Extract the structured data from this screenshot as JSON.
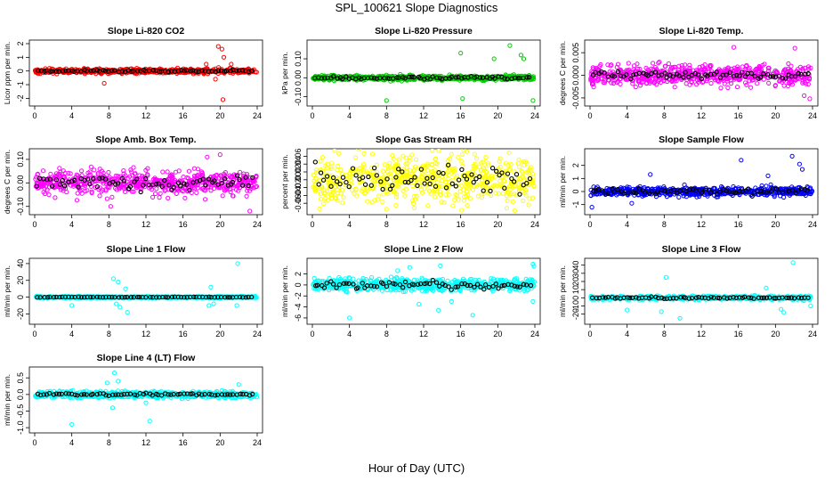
{
  "figure_title": "SPL_100621  Slope Diagnostics",
  "xlabel": "Hour of Day (UTC)",
  "chart_data": [
    {
      "type": "scatter",
      "title": "Slope Li-820 CO2",
      "ylabel": "Licor ppm per min.",
      "xlim": [
        0,
        24
      ],
      "ylim": [
        -2.3,
        2.0
      ],
      "xticks": [
        0,
        4,
        8,
        12,
        16,
        20,
        24
      ],
      "yticks": [
        -2,
        -1,
        0,
        1,
        2
      ],
      "ytick_labels": [
        "-2",
        "-1",
        "0",
        "1",
        "2"
      ],
      "color": "#ff0000",
      "spread": 0.35,
      "black_spread": 0.15,
      "outliers": [
        [
          19.8,
          1.8
        ],
        [
          20.2,
          1.6
        ],
        [
          20.4,
          1.0
        ],
        [
          21.2,
          0.5
        ],
        [
          20.3,
          -2.1
        ],
        [
          7.5,
          -0.9
        ],
        [
          19.5,
          -0.6
        ],
        [
          18.5,
          0.5
        ]
      ]
    },
    {
      "type": "scatter",
      "title": "Slope Li-820 Pressure",
      "ylabel": "kPa per min.",
      "xlim": [
        0,
        24
      ],
      "ylim": [
        -0.13,
        0.18
      ],
      "xticks": [
        0,
        4,
        8,
        12,
        16,
        20,
        24
      ],
      "yticks": [
        -0.1,
        0.0,
        0.1
      ],
      "ytick_labels": [
        "-0.10",
        "0.00",
        "0.10"
      ],
      "color": "#00cc00",
      "spread": 0.025,
      "black_spread": 0.015,
      "outliers": [
        [
          21.3,
          0.17
        ],
        [
          22.5,
          0.12
        ],
        [
          23.8,
          -0.12
        ],
        [
          8.0,
          -0.12
        ],
        [
          16.2,
          -0.11
        ],
        [
          16.0,
          0.13
        ],
        [
          19.6,
          0.1
        ],
        [
          22.8,
          0.1
        ]
      ]
    },
    {
      "type": "scatter",
      "title": "Slope Li-820 Temp.",
      "ylabel": "degrees C per min.",
      "xlim": [
        0,
        24
      ],
      "ylim": [
        -0.006,
        0.007
      ],
      "xticks": [
        0,
        4,
        8,
        12,
        16,
        20,
        24
      ],
      "yticks": [
        -0.005,
        0.0,
        0.005
      ],
      "ytick_labels": [
        "-0.005",
        "0.000",
        "0.005"
      ],
      "color": "#ff00ff",
      "spread": 0.0045,
      "black_spread": 0.0015,
      "outliers": [
        [
          23.7,
          -0.0052
        ],
        [
          15.5,
          0.0062
        ],
        [
          22.1,
          0.006
        ],
        [
          23.1,
          -0.0045
        ]
      ]
    },
    {
      "type": "scatter",
      "title": "Slope Amb. Box Temp.",
      "ylabel": "degrees C per min.",
      "xlim": [
        0,
        24
      ],
      "ylim": [
        -0.12,
        0.13
      ],
      "xticks": [
        0,
        4,
        8,
        12,
        16,
        20,
        24
      ],
      "yticks": [
        -0.1,
        0.0,
        0.1
      ],
      "ytick_labels": [
        "-0.10",
        "0.00",
        "0.10"
      ],
      "color": "#ff00ff",
      "spread": 0.1,
      "black_spread": 0.06,
      "outliers": [
        [
          23.2,
          -0.12
        ],
        [
          20.0,
          0.12
        ],
        [
          8.2,
          -0.1
        ],
        [
          18.6,
          0.11
        ]
      ]
    },
    {
      "type": "scatter",
      "title": "Slope Gas Stream RH",
      "ylabel": "percent per min.",
      "xlim": [
        0,
        24
      ],
      "ylim": [
        -0.08,
        0.07
      ],
      "xticks": [
        0,
        4,
        8,
        12,
        16,
        20,
        24
      ],
      "yticks": [
        -0.06,
        -0.04,
        -0.02,
        0.0,
        0.02,
        0.04,
        0.06
      ],
      "ytick_labels": [
        "-0.06",
        "-0.04",
        "-0.02",
        "0.00",
        "0.02",
        "0.04",
        "0.06"
      ],
      "color": "#ffff00",
      "spread": 0.12,
      "black_spread": 0.06,
      "outliers": [
        [
          8.0,
          -0.075
        ],
        [
          15.0,
          0.065
        ],
        [
          17.5,
          0.065
        ],
        [
          11.0,
          -0.072
        ]
      ]
    },
    {
      "type": "scatter",
      "title": "Slope Sample Flow",
      "ylabel": "ml/min per min.",
      "xlim": [
        0,
        24
      ],
      "ylim": [
        -1.5,
        3.0
      ],
      "xticks": [
        0,
        4,
        8,
        12,
        16,
        20,
        24
      ],
      "yticks": [
        -1,
        0,
        1,
        2
      ],
      "ytick_labels": [
        "-1",
        "0",
        "1",
        "2"
      ],
      "color": "#0000ff",
      "spread": 0.7,
      "black_spread": 0.5,
      "outliers": [
        [
          0.2,
          -1.2
        ],
        [
          16.3,
          2.4
        ],
        [
          21.8,
          2.7
        ],
        [
          22.6,
          2.1
        ],
        [
          22.9,
          1.7
        ],
        [
          6.5,
          1.3
        ],
        [
          19.2,
          1.2
        ],
        [
          4.5,
          -0.9
        ]
      ]
    },
    {
      "type": "scatter",
      "title": "Slope Line 1 Flow",
      "ylabel": "ml/min per min.",
      "xlim": [
        0,
        24
      ],
      "ylim": [
        -28,
        42
      ],
      "xticks": [
        0,
        4,
        8,
        12,
        16,
        20,
        24
      ],
      "yticks": [
        -20,
        0,
        20,
        40
      ],
      "ytick_labels": [
        "-20",
        "0",
        "20",
        "40"
      ],
      "color": "#00ffff",
      "spread": 2.0,
      "black_spread": 0.6,
      "outliers": [
        [
          21.9,
          40
        ],
        [
          8.5,
          22
        ],
        [
          9.0,
          18
        ],
        [
          9.8,
          10
        ],
        [
          10.0,
          -18
        ],
        [
          9.2,
          -12
        ],
        [
          4.0,
          -10
        ],
        [
          18.8,
          -10
        ],
        [
          19.3,
          -8
        ],
        [
          21.8,
          -10
        ],
        [
          19.0,
          12
        ],
        [
          8.8,
          -8
        ]
      ]
    },
    {
      "type": "scatter",
      "title": "Slope Line 2 Flow",
      "ylabel": "ml/min per min.",
      "xlim": [
        0,
        24
      ],
      "ylim": [
        -6.5,
        4.2
      ],
      "xticks": [
        0,
        4,
        8,
        12,
        16,
        20,
        24
      ],
      "yticks": [
        -6,
        -4,
        -2,
        0,
        2
      ],
      "ytick_labels": [
        "-6",
        "-4",
        "-2",
        "0",
        "2"
      ],
      "color": "#00ffff",
      "spread": 2.2,
      "black_spread": 1.4,
      "outliers": [
        [
          4.0,
          -6.0
        ],
        [
          17.3,
          -5.5
        ],
        [
          13.6,
          -4.6
        ],
        [
          23.8,
          3.8
        ],
        [
          23.9,
          3.4
        ],
        [
          23.8,
          -3.0
        ],
        [
          9.2,
          2.6
        ],
        [
          10.5,
          3.2
        ],
        [
          13.8,
          3.5
        ],
        [
          11.5,
          -3.5
        ],
        [
          15.0,
          -3.0
        ]
      ]
    },
    {
      "type": "scatter",
      "title": "Slope Line 3 Flow",
      "ylabel": "ml/min per min.",
      "xlim": [
        0,
        24
      ],
      "ylim": [
        -28,
        44
      ],
      "xticks": [
        0,
        4,
        8,
        12,
        16,
        20,
        24
      ],
      "yticks": [
        -20,
        -10,
        0,
        10,
        20,
        30,
        40
      ],
      "ytick_labels": [
        "-20",
        "-10",
        "0",
        "10",
        "20",
        "30",
        "40"
      ],
      "color": "#00ffff",
      "spread": 4.5,
      "black_spread": 2.0,
      "outliers": [
        [
          21.9,
          43
        ],
        [
          8.2,
          25
        ],
        [
          9.7,
          -25
        ],
        [
          7.7,
          -17
        ],
        [
          20.6,
          -14
        ],
        [
          20.9,
          -18
        ],
        [
          19.0,
          12
        ],
        [
          4.0,
          -15
        ],
        [
          23.8,
          -10
        ]
      ]
    },
    {
      "type": "scatter",
      "title": "Slope Line 4 (LT) Flow",
      "ylabel": "ml/min per min.",
      "xlim": [
        0,
        24
      ],
      "ylim": [
        -1.05,
        0.72
      ],
      "xticks": [
        0,
        4,
        8,
        12,
        16,
        20,
        24
      ],
      "yticks": [
        -1.0,
        -0.5,
        0.0,
        0.5
      ],
      "ytick_labels": [
        "-1.0",
        "-0.5",
        "0.0",
        "0.5"
      ],
      "color": "#00ffff",
      "spread": 0.2,
      "black_spread": 0.08,
      "outliers": [
        [
          8.6,
          0.65
        ],
        [
          4.0,
          -0.9
        ],
        [
          12.4,
          -0.8
        ],
        [
          8.4,
          -0.4
        ],
        [
          9.0,
          0.4
        ],
        [
          22.0,
          0.3
        ],
        [
          7.8,
          0.35
        ],
        [
          12.0,
          -0.25
        ]
      ]
    }
  ]
}
